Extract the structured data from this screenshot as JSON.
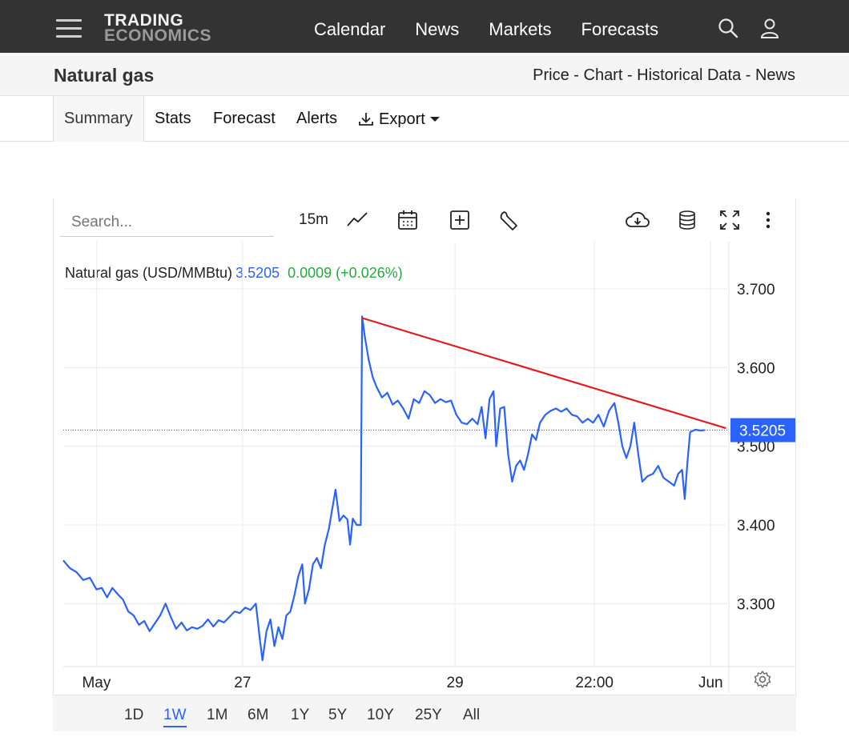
{
  "nav": {
    "logo_line1": "TRADING",
    "logo_line2": "ECONOMICS",
    "links": [
      "Calendar",
      "News",
      "Markets",
      "Forecasts"
    ],
    "icons": [
      "menu-icon",
      "search-icon",
      "user-icon"
    ]
  },
  "titlebar": {
    "title": "Natural gas",
    "crumbs": "Price - Chart - Historical Data - News"
  },
  "tabs": [
    "Summary",
    "Stats",
    "Forecast",
    "Alerts",
    "Export"
  ],
  "toolbar": {
    "search_placeholder": "Search...",
    "interval": "15m",
    "icons": [
      "line-chart-icon",
      "calendar-icon",
      "add-indicator-icon",
      "wrench-icon",
      "download-icon",
      "database-icon",
      "fullscreen-icon",
      "more-icon",
      "settings-icon"
    ]
  },
  "legend": {
    "name": "Natural gas (USD/MMBtu)",
    "value": "3.5205",
    "change": "0.0009 (+0.026%)"
  },
  "ranges": [
    "1D",
    "1W",
    "1M",
    "6M",
    "1Y",
    "5Y",
    "10Y",
    "25Y",
    "All"
  ],
  "active_range": "1W",
  "colors": {
    "series": "#2962ff",
    "trendline": "#e41b1b",
    "up": "#22ab3c"
  },
  "chart_data": {
    "type": "line",
    "y_ticks": [
      "3.700",
      "3.600",
      "3.500",
      "3.400",
      "3.300"
    ],
    "ylim": [
      3.22,
      3.76
    ],
    "x_ticks": [
      "May",
      "27",
      "29",
      "22:00",
      "Jun"
    ],
    "x_tick_positions": [
      0.05,
      0.27,
      0.59,
      0.8,
      0.975
    ],
    "last_price_label": "3.5205",
    "last_price": 3.5205,
    "series": [
      {
        "values": [
          [
            0.0,
            3.355
          ],
          [
            0.01,
            3.345
          ],
          [
            0.02,
            3.34
          ],
          [
            0.03,
            3.33
          ],
          [
            0.04,
            3.333
          ],
          [
            0.05,
            3.318
          ],
          [
            0.058,
            3.32
          ],
          [
            0.066,
            3.308
          ],
          [
            0.074,
            3.32
          ],
          [
            0.082,
            3.312
          ],
          [
            0.09,
            3.305
          ],
          [
            0.098,
            3.29
          ],
          [
            0.106,
            3.285
          ],
          [
            0.114,
            3.273
          ],
          [
            0.122,
            3.278
          ],
          [
            0.13,
            3.265
          ],
          [
            0.138,
            3.275
          ],
          [
            0.146,
            3.285
          ],
          [
            0.154,
            3.3
          ],
          [
            0.162,
            3.283
          ],
          [
            0.17,
            3.268
          ],
          [
            0.178,
            3.276
          ],
          [
            0.186,
            3.266
          ],
          [
            0.194,
            3.27
          ],
          [
            0.202,
            3.268
          ],
          [
            0.21,
            3.272
          ],
          [
            0.218,
            3.28
          ],
          [
            0.226,
            3.271
          ],
          [
            0.234,
            3.279
          ],
          [
            0.242,
            3.276
          ],
          [
            0.25,
            3.283
          ],
          [
            0.258,
            3.29
          ],
          [
            0.266,
            3.288
          ],
          [
            0.274,
            3.295
          ],
          [
            0.282,
            3.292
          ],
          [
            0.29,
            3.3
          ],
          [
            0.296,
            3.255
          ],
          [
            0.3,
            3.228
          ],
          [
            0.306,
            3.265
          ],
          [
            0.312,
            3.28
          ],
          [
            0.318,
            3.246
          ],
          [
            0.324,
            3.27
          ],
          [
            0.33,
            3.255
          ],
          [
            0.336,
            3.285
          ],
          [
            0.342,
            3.29
          ],
          [
            0.348,
            3.31
          ],
          [
            0.354,
            3.335
          ],
          [
            0.36,
            3.35
          ],
          [
            0.364,
            3.3
          ],
          [
            0.37,
            3.318
          ],
          [
            0.376,
            3.35
          ],
          [
            0.382,
            3.358
          ],
          [
            0.388,
            3.345
          ],
          [
            0.394,
            3.375
          ],
          [
            0.4,
            3.395
          ],
          [
            0.406,
            3.425
          ],
          [
            0.41,
            3.445
          ],
          [
            0.416,
            3.405
          ],
          [
            0.422,
            3.412
          ],
          [
            0.428,
            3.407
          ],
          [
            0.432,
            3.375
          ],
          [
            0.436,
            3.408
          ],
          [
            0.442,
            3.4
          ],
          [
            0.448,
            3.4
          ],
          [
            0.45,
            3.665
          ],
          [
            0.454,
            3.64
          ],
          [
            0.46,
            3.61
          ],
          [
            0.466,
            3.588
          ],
          [
            0.472,
            3.575
          ],
          [
            0.48,
            3.562
          ],
          [
            0.488,
            3.568
          ],
          [
            0.496,
            3.553
          ],
          [
            0.504,
            3.558
          ],
          [
            0.512,
            3.548
          ],
          [
            0.52,
            3.535
          ],
          [
            0.528,
            3.56
          ],
          [
            0.536,
            3.555
          ],
          [
            0.544,
            3.57
          ],
          [
            0.552,
            3.565
          ],
          [
            0.56,
            3.555
          ],
          [
            0.568,
            3.56
          ],
          [
            0.576,
            3.556
          ],
          [
            0.584,
            3.558
          ],
          [
            0.592,
            3.54
          ],
          [
            0.6,
            3.53
          ],
          [
            0.608,
            3.528
          ],
          [
            0.616,
            3.535
          ],
          [
            0.624,
            3.528
          ],
          [
            0.63,
            3.55
          ],
          [
            0.636,
            3.51
          ],
          [
            0.642,
            3.56
          ],
          [
            0.648,
            3.57
          ],
          [
            0.652,
            3.5
          ],
          [
            0.658,
            3.548
          ],
          [
            0.664,
            3.55
          ],
          [
            0.67,
            3.49
          ],
          [
            0.676,
            3.455
          ],
          [
            0.682,
            3.475
          ],
          [
            0.688,
            3.482
          ],
          [
            0.694,
            3.47
          ],
          [
            0.7,
            3.49
          ],
          [
            0.706,
            3.515
          ],
          [
            0.712,
            3.508
          ],
          [
            0.718,
            3.53
          ],
          [
            0.726,
            3.54
          ],
          [
            0.734,
            3.545
          ],
          [
            0.742,
            3.548
          ],
          [
            0.75,
            3.544
          ],
          [
            0.758,
            3.548
          ],
          [
            0.766,
            3.54
          ],
          [
            0.774,
            3.538
          ],
          [
            0.782,
            3.53
          ],
          [
            0.79,
            3.535
          ],
          [
            0.798,
            3.53
          ],
          [
            0.806,
            3.54
          ],
          [
            0.814,
            3.525
          ],
          [
            0.822,
            3.545
          ],
          [
            0.83,
            3.555
          ],
          [
            0.836,
            3.53
          ],
          [
            0.842,
            3.5
          ],
          [
            0.848,
            3.485
          ],
          [
            0.854,
            3.5
          ],
          [
            0.86,
            3.53
          ],
          [
            0.866,
            3.49
          ],
          [
            0.872,
            3.455
          ],
          [
            0.88,
            3.462
          ],
          [
            0.888,
            3.465
          ],
          [
            0.896,
            3.475
          ],
          [
            0.904,
            3.46
          ],
          [
            0.912,
            3.455
          ],
          [
            0.92,
            3.45
          ],
          [
            0.926,
            3.465
          ],
          [
            0.932,
            3.47
          ],
          [
            0.936,
            3.433
          ],
          [
            0.94,
            3.48
          ],
          [
            0.944,
            3.518
          ],
          [
            0.952,
            3.521
          ],
          [
            0.96,
            3.52
          ],
          [
            0.966,
            3.5205
          ]
        ]
      }
    ],
    "trendline": [
      [
        0.45,
        3.663
      ],
      [
        0.998,
        3.523
      ]
    ]
  }
}
